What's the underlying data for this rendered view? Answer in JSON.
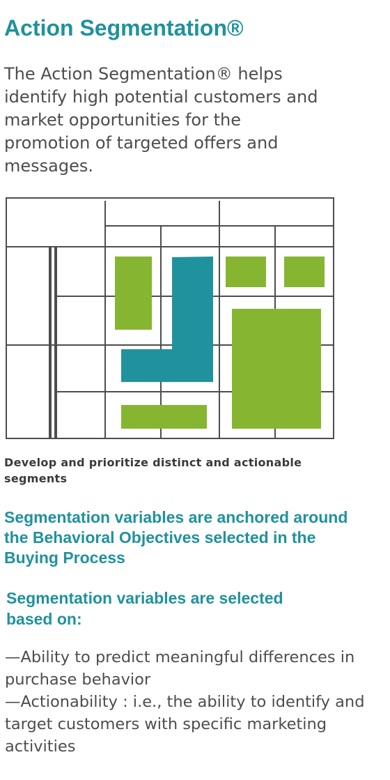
{
  "title": "Action Segmentation®",
  "intro": "The Action Segmentation® helps identify high potential customers and market opportunities for the promotion of targeted offers and messages.",
  "diagram": {
    "colors": {
      "grid": "#4d4d4d",
      "green": "#86b532",
      "teal": "#1f929d"
    }
  },
  "caption": "Develop and prioritize distinct and actionable segments",
  "anchor_statement": "Segmentation variables are anchored around the Behavioral Objectives selected in the Buying Process",
  "based_on_heading": "Segmentation variables are selected based on:",
  "criteria": [
    "—Ability to predict meaningful differences in purchase behavior",
    "—Actionability : i.e., the ability to identify and target customers with specific marketing activities"
  ]
}
